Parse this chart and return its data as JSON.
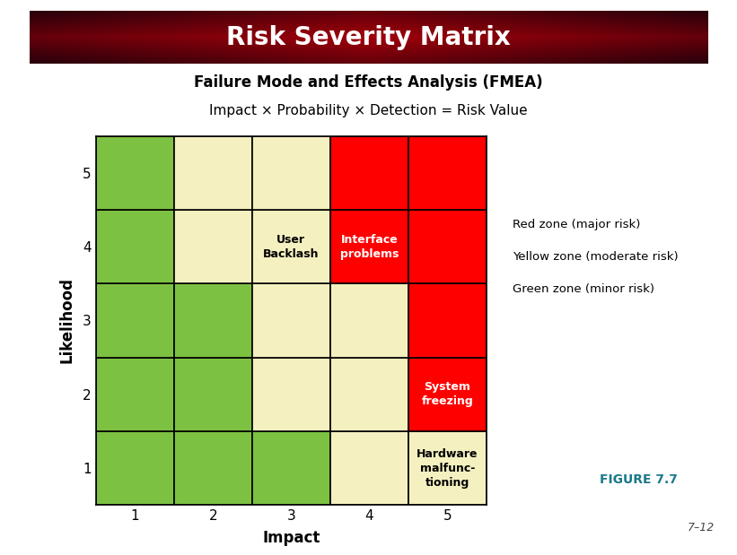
{
  "title": "Risk Severity Matrix",
  "subtitle_bold": "Failure Mode and Effects Analysis (FMEA)",
  "subtitle_normal": "Impact × Probability × Detection = Risk Value",
  "xlabel": "Impact",
  "ylabel": "Likelihood",
  "x_ticks": [
    1,
    2,
    3,
    4,
    5
  ],
  "y_ticks": [
    1,
    2,
    3,
    4,
    5
  ],
  "header_text_color": "#FFFFFF",
  "figure_bg": "#FFFFFF",
  "legend_lines": [
    "Red zone (major risk)",
    "Yellow zone (moderate risk)",
    "Green zone (minor risk)"
  ],
  "figure_label": "FIGURE 7.7",
  "figure_label_color": "#1B7A8A",
  "page_number": "7–12",
  "cell_colors": [
    [
      "#7DC142",
      "#7DC142",
      "#7DC142",
      "#F5F0C0",
      "#F5F0C0"
    ],
    [
      "#7DC142",
      "#7DC142",
      "#F5F0C0",
      "#F5F0C0",
      "#FF0000"
    ],
    [
      "#7DC142",
      "#7DC142",
      "#F5F0C0",
      "#F5F0C0",
      "#FF0000"
    ],
    [
      "#7DC142",
      "#F5F0C0",
      "#F5F0C0",
      "#FF0000",
      "#FF0000"
    ],
    [
      "#7DC142",
      "#F5F0C0",
      "#F5F0C0",
      "#FF0000",
      "#FF0000"
    ]
  ],
  "annotations": [
    {
      "row": 3,
      "col": 2,
      "text": "User\nBacklash",
      "color": "#000000",
      "fontweight": "bold"
    },
    {
      "row": 3,
      "col": 3,
      "text": "Interface\nproblems",
      "color": "#FFFFFF",
      "fontweight": "bold"
    },
    {
      "row": 1,
      "col": 4,
      "text": "System\nfreezing",
      "color": "#FFFFFF",
      "fontweight": "bold"
    },
    {
      "row": 0,
      "col": 4,
      "text": "Hardware\nmalfunc-\ntioning",
      "color": "#000000",
      "fontweight": "bold"
    }
  ],
  "grid_color": "#000000",
  "grid_linewidth": 1.2
}
